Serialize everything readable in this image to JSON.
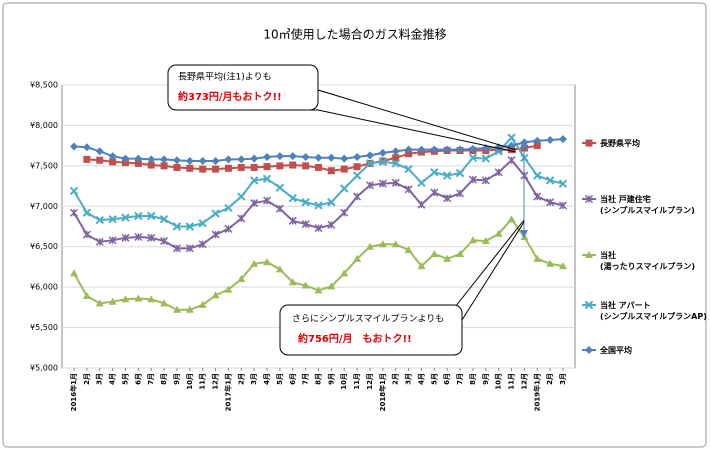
{
  "chart_data": {
    "type": "line",
    "title": "10㎥使用した場合のガス料金推移",
    "categories": [
      "2016年1月",
      "2月",
      "3月",
      "4月",
      "5月",
      "6月",
      "7月",
      "8月",
      "9月",
      "10月",
      "11月",
      "12月",
      "2017年1月",
      "2月",
      "3月",
      "4月",
      "5月",
      "6月",
      "7月",
      "8月",
      "9月",
      "10月",
      "11月",
      "12月",
      "2018年1月",
      "2月",
      "3月",
      "4月",
      "5月",
      "6月",
      "7月",
      "8月",
      "9月",
      "10月",
      "11月",
      "12月",
      "2019年1月",
      "2月",
      "3月"
    ],
    "ylim": [
      5000,
      8500
    ],
    "yticks": [
      {
        "value": 5000,
        "label": "¥5,000"
      },
      {
        "value": 5500,
        "label": "¥5,500"
      },
      {
        "value": 6000,
        "label": "¥6,000"
      },
      {
        "value": 6500,
        "label": "¥6,500"
      },
      {
        "value": 7000,
        "label": "¥7,000"
      },
      {
        "value": 7500,
        "label": "¥7,500"
      },
      {
        "value": 8000,
        "label": "¥8,000"
      },
      {
        "value": 8500,
        "label": "¥8,500"
      }
    ],
    "grid": true,
    "series": [
      {
        "name": "長野県平均",
        "color": "#c0504d",
        "marker": "square",
        "values": [
          null,
          7580,
          7570,
          7550,
          7540,
          7530,
          7510,
          7500,
          7480,
          7470,
          7460,
          7460,
          7470,
          7480,
          7480,
          7490,
          7500,
          7510,
          7500,
          7480,
          7440,
          7460,
          7490,
          7530,
          7560,
          7600,
          7650,
          7670,
          7680,
          7690,
          7690,
          7690,
          7690,
          7700,
          7700,
          7720,
          7750,
          null,
          null
        ]
      },
      {
        "name": "当社 戸建住宅\n(シンプルスマイルプラン)",
        "color": "#8064a2",
        "marker": "star",
        "values": [
          6920,
          6650,
          6560,
          6580,
          6610,
          6620,
          6610,
          6570,
          6480,
          6480,
          6530,
          6650,
          6720,
          6850,
          7040,
          7070,
          6970,
          6820,
          6780,
          6730,
          6770,
          6920,
          7120,
          7260,
          7280,
          7290,
          7210,
          7020,
          7170,
          7100,
          7160,
          7330,
          7320,
          7420,
          7570,
          7380,
          7120,
          7050,
          7010
        ]
      },
      {
        "name": "当社\n(湯ったりスマイルプラン)",
        "color": "#9bbb59",
        "marker": "triangle",
        "values": [
          6170,
          5890,
          5800,
          5820,
          5850,
          5860,
          5850,
          5800,
          5720,
          5720,
          5780,
          5900,
          5970,
          6100,
          6290,
          6310,
          6220,
          6060,
          6020,
          5960,
          6010,
          6170,
          6350,
          6500,
          6530,
          6530,
          6460,
          6260,
          6410,
          6350,
          6410,
          6580,
          6570,
          6660,
          6840,
          6620,
          6350,
          6290,
          6260
        ]
      },
      {
        "name": "当社 アパート\n(シンプルスマイルプランAP)",
        "color": "#4bacc6",
        "marker": "x",
        "values": [
          7190,
          6920,
          6830,
          6840,
          6860,
          6880,
          6880,
          6840,
          6750,
          6750,
          6790,
          6910,
          6980,
          7120,
          7320,
          7340,
          7230,
          7100,
          7050,
          7010,
          7050,
          7220,
          7380,
          7530,
          7550,
          7530,
          7460,
          7290,
          7420,
          7380,
          7410,
          7600,
          7590,
          7680,
          7850,
          7600,
          7380,
          7320,
          7280
        ]
      },
      {
        "name": "全国平均",
        "color": "#4f81bd",
        "marker": "diamond",
        "values": [
          7740,
          7730,
          7680,
          7620,
          7590,
          7590,
          7580,
          7580,
          7570,
          7560,
          7560,
          7560,
          7580,
          7580,
          7590,
          7610,
          7620,
          7620,
          7610,
          7600,
          7600,
          7590,
          7610,
          7630,
          7660,
          7680,
          7700,
          7700,
          7700,
          7700,
          7700,
          7710,
          7720,
          7730,
          7750,
          7790,
          7810,
          7820,
          7830
        ]
      }
    ],
    "annotations": [
      "長野県平均(注1)よりも",
      "約373円/月もおトク!!",
      "さらにシンプルスマイルプランよりも",
      "約756円/月　もおトク!!"
    ]
  }
}
